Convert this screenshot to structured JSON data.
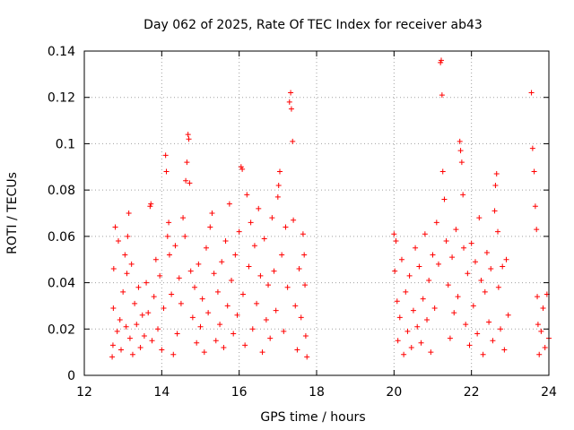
{
  "chart_data": {
    "type": "scatter",
    "title": "Day 062 of 2025, Rate Of TEC Index for receiver ab43",
    "xlabel": "GPS time / hours",
    "ylabel": "ROTI / TECUs",
    "xlim": [
      12,
      24
    ],
    "ylim": [
      0,
      0.14
    ],
    "xticks": [
      12,
      14,
      16,
      18,
      20,
      22,
      24
    ],
    "xtick_labels": [
      "12",
      "14",
      "16",
      "18",
      "20",
      "22",
      "24"
    ],
    "yticks": [
      0,
      0.02,
      0.04,
      0.06,
      0.08,
      0.1,
      0.12,
      0.14
    ],
    "ytick_labels": [
      "0",
      "0.02",
      "0.04",
      "0.06",
      "0.08",
      "0.1",
      "0.12",
      "0.14"
    ],
    "grid": true,
    "marker": "+",
    "color": "#ff0000",
    "series": [
      {
        "name": "ROTI",
        "points": [
          [
            12.72,
            0.008
          ],
          [
            12.74,
            0.013
          ],
          [
            12.75,
            0.029
          ],
          [
            12.76,
            0.046
          ],
          [
            12.8,
            0.064
          ],
          [
            12.85,
            0.019
          ],
          [
            12.88,
            0.058
          ],
          [
            12.92,
            0.024
          ],
          [
            12.95,
            0.011
          ],
          [
            13.0,
            0.036
          ],
          [
            13.05,
            0.052
          ],
          [
            13.08,
            0.021
          ],
          [
            13.1,
            0.044
          ],
          [
            13.12,
            0.06
          ],
          [
            13.15,
            0.07
          ],
          [
            13.18,
            0.016
          ],
          [
            13.22,
            0.048
          ],
          [
            13.25,
            0.009
          ],
          [
            13.3,
            0.031
          ],
          [
            13.35,
            0.022
          ],
          [
            13.4,
            0.038
          ],
          [
            13.45,
            0.012
          ],
          [
            13.5,
            0.026
          ],
          [
            13.55,
            0.017
          ],
          [
            13.6,
            0.04
          ],
          [
            13.65,
            0.027
          ],
          [
            13.7,
            0.073
          ],
          [
            13.72,
            0.074
          ],
          [
            13.75,
            0.015
          ],
          [
            13.8,
            0.034
          ],
          [
            13.85,
            0.05
          ],
          [
            13.9,
            0.02
          ],
          [
            13.95,
            0.043
          ],
          [
            14.0,
            0.011
          ],
          [
            14.05,
            0.029
          ],
          [
            14.1,
            0.095
          ],
          [
            14.12,
            0.088
          ],
          [
            14.15,
            0.06
          ],
          [
            14.18,
            0.066
          ],
          [
            14.2,
            0.052
          ],
          [
            14.25,
            0.035
          ],
          [
            14.3,
            0.009
          ],
          [
            14.35,
            0.056
          ],
          [
            14.4,
            0.018
          ],
          [
            14.45,
            0.042
          ],
          [
            14.5,
            0.031
          ],
          [
            14.55,
            0.068
          ],
          [
            14.6,
            0.06
          ],
          [
            14.62,
            0.084
          ],
          [
            14.65,
            0.092
          ],
          [
            14.68,
            0.104
          ],
          [
            14.7,
            0.102
          ],
          [
            14.72,
            0.083
          ],
          [
            14.75,
            0.045
          ],
          [
            14.8,
            0.025
          ],
          [
            14.85,
            0.038
          ],
          [
            14.9,
            0.014
          ],
          [
            14.95,
            0.048
          ],
          [
            15.0,
            0.021
          ],
          [
            15.05,
            0.033
          ],
          [
            15.1,
            0.01
          ],
          [
            15.15,
            0.055
          ],
          [
            15.2,
            0.027
          ],
          [
            15.25,
            0.064
          ],
          [
            15.3,
            0.07
          ],
          [
            15.35,
            0.044
          ],
          [
            15.4,
            0.015
          ],
          [
            15.45,
            0.036
          ],
          [
            15.5,
            0.022
          ],
          [
            15.55,
            0.049
          ],
          [
            15.6,
            0.012
          ],
          [
            15.65,
            0.058
          ],
          [
            15.7,
            0.03
          ],
          [
            15.75,
            0.074
          ],
          [
            15.8,
            0.041
          ],
          [
            15.85,
            0.018
          ],
          [
            15.9,
            0.052
          ],
          [
            15.95,
            0.026
          ],
          [
            16.0,
            0.062
          ],
          [
            16.05,
            0.09
          ],
          [
            16.08,
            0.089
          ],
          [
            16.1,
            0.035
          ],
          [
            16.15,
            0.013
          ],
          [
            16.2,
            0.078
          ],
          [
            16.25,
            0.047
          ],
          [
            16.3,
            0.066
          ],
          [
            16.35,
            0.02
          ],
          [
            16.4,
            0.056
          ],
          [
            16.45,
            0.031
          ],
          [
            16.5,
            0.072
          ],
          [
            16.55,
            0.043
          ],
          [
            16.6,
            0.01
          ],
          [
            16.65,
            0.059
          ],
          [
            16.7,
            0.024
          ],
          [
            16.75,
            0.039
          ],
          [
            16.8,
            0.016
          ],
          [
            16.85,
            0.068
          ],
          [
            16.9,
            0.045
          ],
          [
            16.95,
            0.028
          ],
          [
            17.0,
            0.077
          ],
          [
            17.02,
            0.082
          ],
          [
            17.05,
            0.088
          ],
          [
            17.1,
            0.052
          ],
          [
            17.15,
            0.019
          ],
          [
            17.2,
            0.064
          ],
          [
            17.25,
            0.038
          ],
          [
            17.3,
            0.118
          ],
          [
            17.33,
            0.122
          ],
          [
            17.35,
            0.115
          ],
          [
            17.38,
            0.101
          ],
          [
            17.4,
            0.067
          ],
          [
            17.45,
            0.03
          ],
          [
            17.5,
            0.011
          ],
          [
            17.55,
            0.046
          ],
          [
            17.6,
            0.025
          ],
          [
            17.65,
            0.061
          ],
          [
            17.68,
            0.052
          ],
          [
            17.7,
            0.039
          ],
          [
            17.72,
            0.017
          ],
          [
            17.75,
            0.008
          ],
          [
            20.0,
            0.061
          ],
          [
            20.02,
            0.045
          ],
          [
            20.05,
            0.058
          ],
          [
            20.08,
            0.032
          ],
          [
            20.1,
            0.015
          ],
          [
            20.15,
            0.025
          ],
          [
            20.2,
            0.05
          ],
          [
            20.25,
            0.009
          ],
          [
            20.3,
            0.036
          ],
          [
            20.35,
            0.019
          ],
          [
            20.4,
            0.043
          ],
          [
            20.45,
            0.012
          ],
          [
            20.5,
            0.028
          ],
          [
            20.55,
            0.055
          ],
          [
            20.6,
            0.021
          ],
          [
            20.65,
            0.047
          ],
          [
            20.7,
            0.014
          ],
          [
            20.75,
            0.033
          ],
          [
            20.8,
            0.061
          ],
          [
            20.85,
            0.024
          ],
          [
            20.9,
            0.041
          ],
          [
            20.95,
            0.01
          ],
          [
            21.0,
            0.052
          ],
          [
            21.05,
            0.029
          ],
          [
            21.1,
            0.066
          ],
          [
            21.15,
            0.048
          ],
          [
            21.2,
            0.135
          ],
          [
            21.22,
            0.136
          ],
          [
            21.24,
            0.121
          ],
          [
            21.26,
            0.088
          ],
          [
            21.3,
            0.076
          ],
          [
            21.35,
            0.058
          ],
          [
            21.4,
            0.039
          ],
          [
            21.45,
            0.016
          ],
          [
            21.5,
            0.051
          ],
          [
            21.55,
            0.027
          ],
          [
            21.6,
            0.063
          ],
          [
            21.65,
            0.034
          ],
          [
            21.7,
            0.101
          ],
          [
            21.72,
            0.097
          ],
          [
            21.75,
            0.092
          ],
          [
            21.78,
            0.078
          ],
          [
            21.8,
            0.055
          ],
          [
            21.85,
            0.022
          ],
          [
            21.9,
            0.044
          ],
          [
            21.95,
            0.013
          ],
          [
            22.0,
            0.057
          ],
          [
            22.05,
            0.03
          ],
          [
            22.1,
            0.049
          ],
          [
            22.15,
            0.018
          ],
          [
            22.2,
            0.068
          ],
          [
            22.25,
            0.041
          ],
          [
            22.3,
            0.009
          ],
          [
            22.35,
            0.036
          ],
          [
            22.4,
            0.053
          ],
          [
            22.45,
            0.023
          ],
          [
            22.5,
            0.046
          ],
          [
            22.55,
            0.015
          ],
          [
            22.6,
            0.071
          ],
          [
            22.62,
            0.082
          ],
          [
            22.65,
            0.087
          ],
          [
            22.68,
            0.062
          ],
          [
            22.7,
            0.038
          ],
          [
            22.75,
            0.02
          ],
          [
            22.8,
            0.047
          ],
          [
            22.85,
            0.011
          ],
          [
            22.9,
            0.05
          ],
          [
            22.95,
            0.026
          ],
          [
            23.55,
            0.122
          ],
          [
            23.58,
            0.098
          ],
          [
            23.62,
            0.088
          ],
          [
            23.65,
            0.073
          ],
          [
            23.68,
            0.063
          ],
          [
            23.7,
            0.034
          ],
          [
            23.72,
            0.022
          ],
          [
            23.75,
            0.009
          ],
          [
            23.8,
            0.019
          ],
          [
            23.85,
            0.029
          ],
          [
            23.9,
            0.012
          ],
          [
            23.95,
            0.035
          ],
          [
            24.0,
            0.016
          ]
        ]
      }
    ]
  }
}
